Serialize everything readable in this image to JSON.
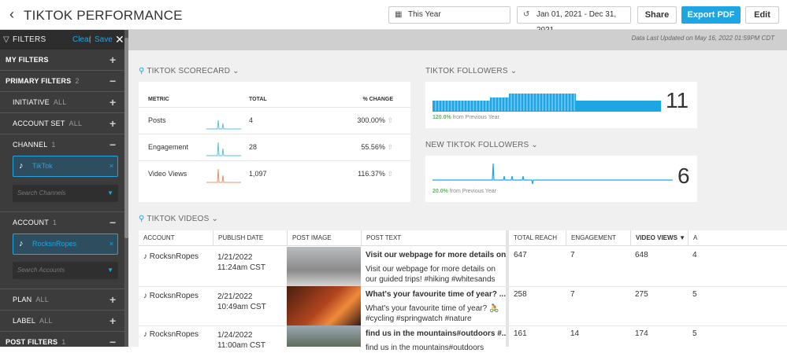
{
  "header": {
    "title": "TIKTOK PERFORMANCE",
    "period": "This Year",
    "date_range": "Jan 01, 2021 - Dec 31, 2021",
    "share": "Share",
    "export": "Export PDF",
    "edit": "Edit"
  },
  "filters": {
    "title": "FILTERS",
    "clear": "Clear",
    "save": "Save",
    "my_filters": "MY FILTERS",
    "primary": "PRIMARY FILTERS",
    "primary_count": "2",
    "initiative": "INITIATIVE",
    "initiative_val": "ALL",
    "account_set": "ACCOUNT SET",
    "account_set_val": "ALL",
    "channel": "CHANNEL",
    "channel_count": "1",
    "channel_chip": "TikTok",
    "channel_search": "Search Channels",
    "account": "ACCOUNT",
    "account_count": "1",
    "account_chip": "RocksnRopes",
    "account_search": "Search Accounts",
    "plan": "PLAN",
    "plan_val": "ALL",
    "label": "LABEL",
    "label_val": "ALL",
    "post": "POST FILTERS",
    "post_count": "1"
  },
  "updated": "Data Last Updated on May 16, 2022 01:59PM CDT",
  "scorecard": {
    "title": "TIKTOK SCORECARD",
    "headers": [
      "METRIC",
      "TOTAL",
      "% CHANGE"
    ],
    "rows": [
      {
        "metric": "Posts",
        "total": "4",
        "change": "300.00%"
      },
      {
        "metric": "Engagement",
        "total": "28",
        "change": "55.56%"
      },
      {
        "metric": "Video Views",
        "total": "1,097",
        "change": "116.37%"
      }
    ]
  },
  "followers": {
    "title": "TIKTOK FOLLOWERS",
    "value": "11",
    "pct": "120.0%",
    "prev": "from Previous Year"
  },
  "new_followers": {
    "title": "NEW TIKTOK FOLLOWERS",
    "value": "6",
    "pct": "20.0%",
    "prev": "from Previous Year"
  },
  "videos": {
    "title": "TIKTOK VIDEOS",
    "headers": [
      "ACCOUNT",
      "PUBLISH DATE",
      "POST IMAGE",
      "POST TEXT",
      "TOTAL REACH",
      "ENGAGEMENT",
      "VIDEO VIEWS",
      "A"
    ],
    "rows": [
      {
        "account": "RocksnRopes",
        "date": "1/21/2022",
        "time": "11:24am CST",
        "headline": "Visit our webpage for more details on...",
        "body": "Visit our webpage for more details on our guided trips! #hiking #whitesands",
        "reach": "647",
        "engagement": "7",
        "views": "648",
        "extra": "4"
      },
      {
        "account": "RocksnRopes",
        "date": "2/21/2022",
        "time": "10:49am CST",
        "headline": "What's your favourite time of year? ...",
        "body": "What's your favourite time of year? 🚴#cycling #springwatch #nature",
        "reach": "258",
        "engagement": "7",
        "views": "275",
        "extra": "5"
      },
      {
        "account": "RocksnRopes",
        "date": "1/24/2022",
        "time": "11:00am CST",
        "headline": "find us in the mountains#outdoors #...",
        "body": "find us in the mountains#outdoors",
        "reach": "161",
        "engagement": "14",
        "views": "174",
        "extra": "5"
      }
    ]
  },
  "colors": {
    "accent": "#1ea6e4",
    "positive": "#5cb85c",
    "sidebar": "#3c3c3c"
  }
}
